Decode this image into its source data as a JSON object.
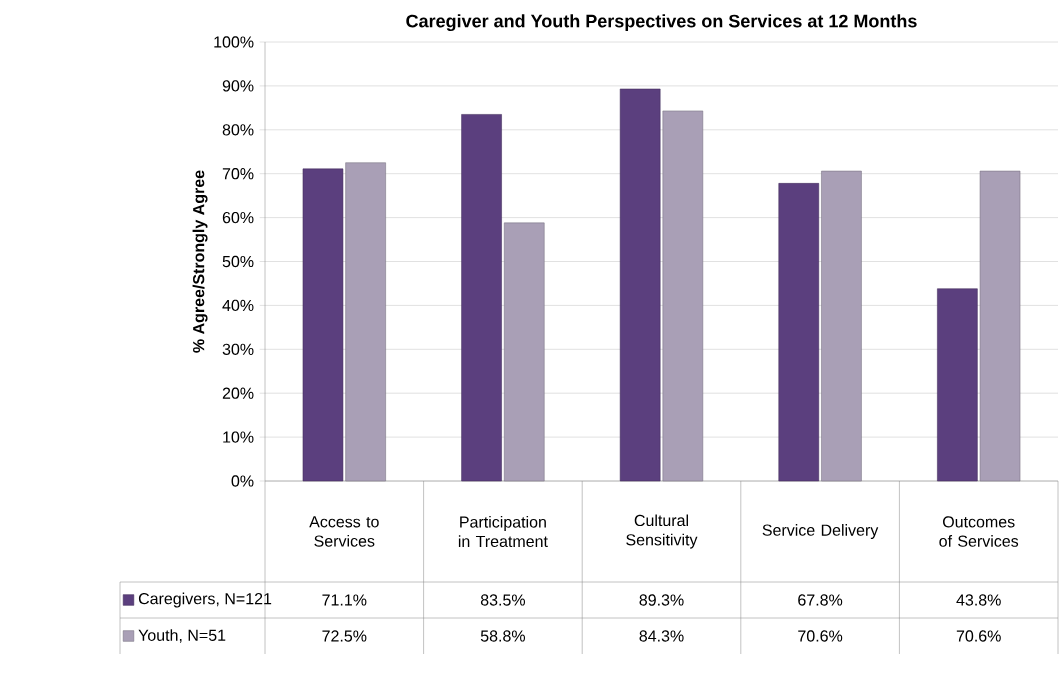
{
  "chart_data": {
    "type": "bar",
    "title": "Caregiver and Youth Perspectives on Services at 12 Months",
    "ylabel": "% Agree/Strongly Agree",
    "categories": [
      "Access to Services",
      "Participation in Treatment",
      "Cultural Sensitivity",
      "Service Delivery",
      "Outcomes of Services"
    ],
    "series": [
      {
        "name": "Caregivers, N=121",
        "color": "#5b3f7e",
        "values": [
          71.1,
          83.5,
          89.3,
          67.8,
          43.8
        ],
        "value_labels": [
          "71.1%",
          "83.5%",
          "89.3%",
          "67.8%",
          "43.8%"
        ]
      },
      {
        "name": "Youth, N=51",
        "color": "#a99fb6",
        "values": [
          72.5,
          58.8,
          84.3,
          70.6,
          70.6
        ],
        "value_labels": [
          "72.5%",
          "58.8%",
          "84.3%",
          "70.6%",
          "70.6%"
        ]
      }
    ],
    "ylim": [
      0,
      100
    ],
    "yticks": [
      {
        "value": 0,
        "label": "0%"
      },
      {
        "value": 10,
        "label": "10%"
      },
      {
        "value": 20,
        "label": "20%"
      },
      {
        "value": 30,
        "label": "30%"
      },
      {
        "value": 40,
        "label": "40%"
      },
      {
        "value": 50,
        "label": "50%"
      },
      {
        "value": 60,
        "label": "60%"
      },
      {
        "value": 70,
        "label": "70%"
      },
      {
        "value": 80,
        "label": "80%"
      },
      {
        "value": 90,
        "label": "90%"
      },
      {
        "value": 100,
        "label": "100%"
      }
    ],
    "grid": "y",
    "legend": "bottom"
  }
}
